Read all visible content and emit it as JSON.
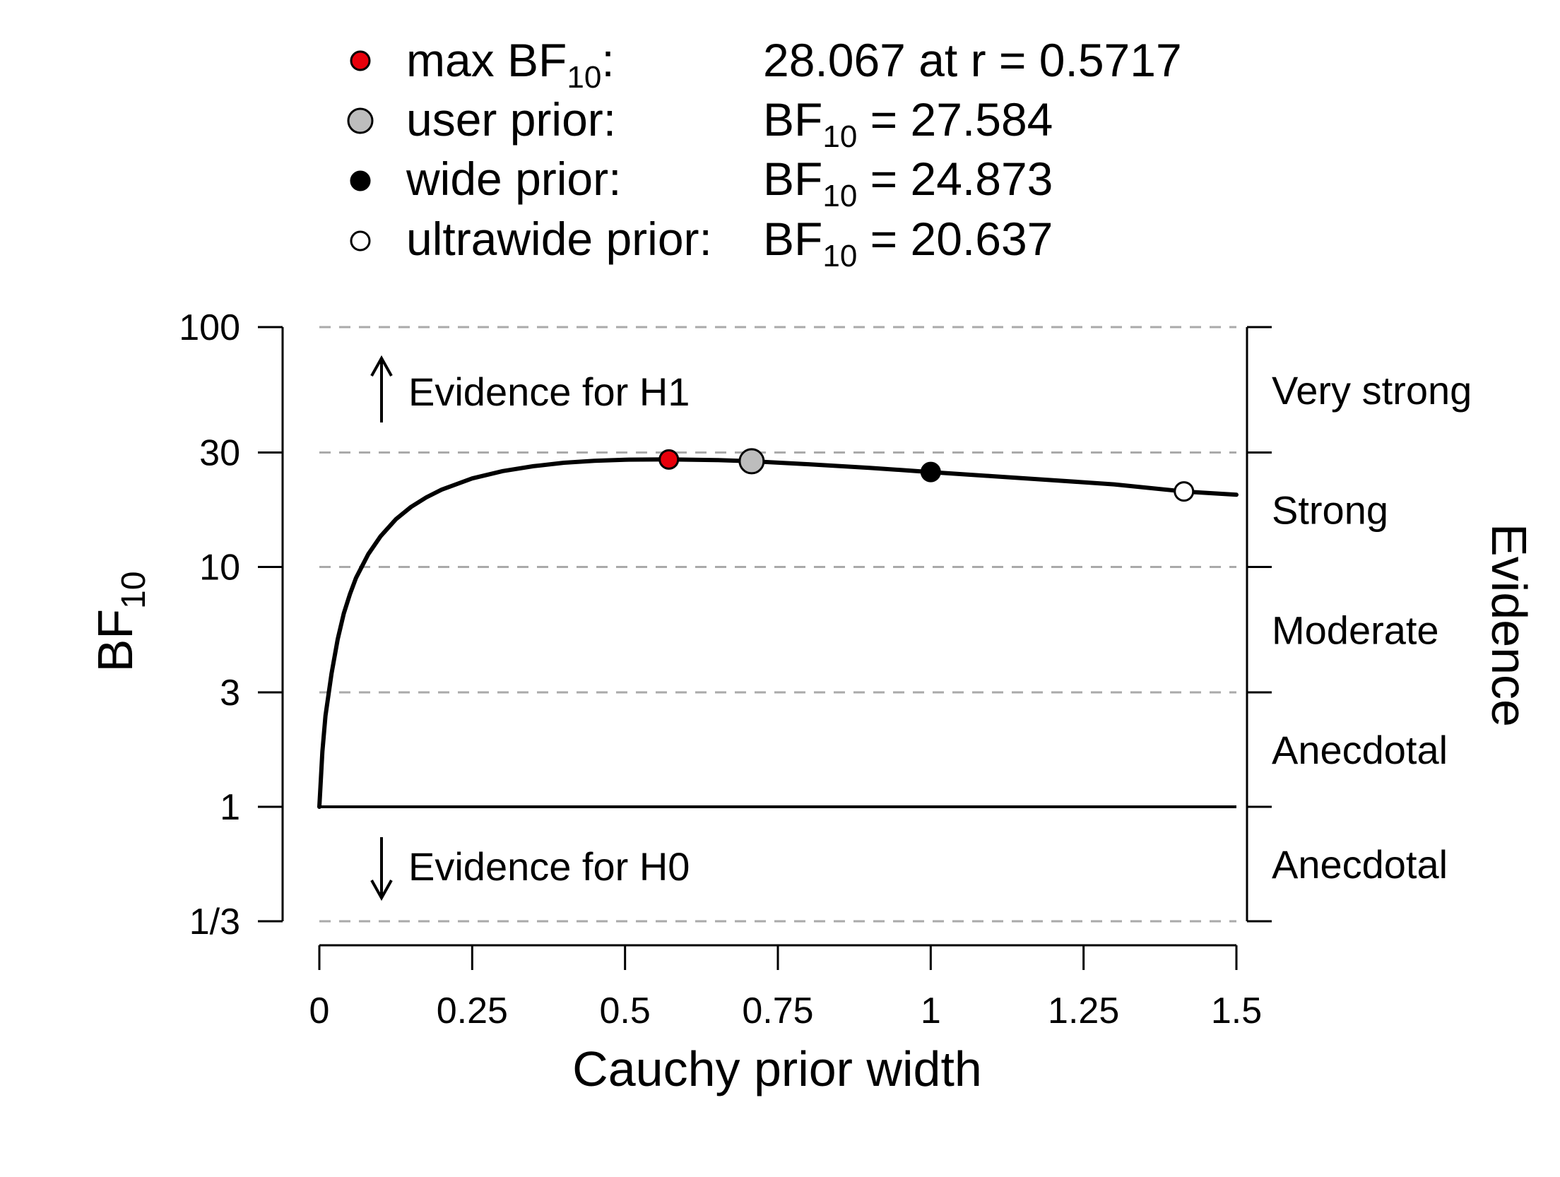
{
  "chart_data": {
    "type": "line",
    "xlabel": "Cauchy prior width",
    "ylabel": "BF",
    "ylabel_sub": "10",
    "right_label": "Evidence",
    "y_scale": "log",
    "xlim": [
      0,
      1.5
    ],
    "ylim": [
      0.3333,
      100
    ],
    "x_ticks": [
      0,
      0.25,
      0.5,
      0.75,
      1,
      1.25,
      1.5
    ],
    "x_tick_labels": [
      "0",
      "0.25",
      "0.5",
      "0.75",
      "1",
      "1.25",
      "1.5"
    ],
    "y_ticks": [
      0.3333,
      1,
      3,
      10,
      30,
      100
    ],
    "y_tick_labels": [
      "1/3",
      "1",
      "3",
      "10",
      "30",
      "100"
    ],
    "reference_line": 1,
    "gridlines": [
      0.3333,
      3,
      10,
      30,
      100
    ],
    "evidence_bands": [
      {
        "label": "Very strong",
        "from": 30,
        "to": 100
      },
      {
        "label": "Strong",
        "from": 10,
        "to": 30
      },
      {
        "label": "Moderate",
        "from": 3,
        "to": 10
      },
      {
        "label": "Anecdotal",
        "from": 1,
        "to": 3
      },
      {
        "label": "Anecdotal",
        "from": 0.3333,
        "to": 1
      }
    ],
    "annotations": {
      "h1": "Evidence for H1",
      "h0": "Evidence for H0"
    },
    "series": [
      {
        "x": [
          0.0,
          0.005,
          0.01,
          0.02,
          0.03,
          0.04,
          0.05,
          0.06,
          0.08,
          0.1,
          0.125,
          0.15,
          0.175,
          0.2,
          0.25,
          0.3,
          0.35,
          0.4,
          0.45,
          0.5,
          0.5717,
          0.65,
          0.7071,
          0.8,
          0.9,
          1.0,
          1.1,
          1.2,
          1.3,
          1.4142,
          1.5
        ],
        "y": [
          1.0,
          1.7,
          2.4,
          3.6,
          5.0,
          6.4,
          7.7,
          9.0,
          11.3,
          13.4,
          15.8,
          17.8,
          19.5,
          21.0,
          23.4,
          25.1,
          26.3,
          27.2,
          27.7,
          28.0,
          28.067,
          27.9,
          27.584,
          26.8,
          25.9,
          24.873,
          23.9,
          23.0,
          22.1,
          20.637,
          20.0
        ]
      }
    ],
    "points": [
      {
        "name": "max BF",
        "x": 0.5717,
        "y": 28.067,
        "fill": "#e8000b",
        "size": "small"
      },
      {
        "name": "user prior",
        "x": 0.7071,
        "y": 27.584,
        "fill": "#bdbdbd",
        "size": "large"
      },
      {
        "name": "wide prior",
        "x": 1.0,
        "y": 24.873,
        "fill": "#000000",
        "size": "small"
      },
      {
        "name": "ultrawide prior",
        "x": 1.4142,
        "y": 20.637,
        "fill": "#ffffff",
        "size": "small"
      }
    ],
    "legend": {
      "placement": "top",
      "entries": [
        {
          "label": "max BF",
          "label_sub": "10",
          "label_suffix": ":",
          "value": "28.067 at r = 0.5717",
          "fill": "#e8000b",
          "size": "small"
        },
        {
          "label": "user prior:",
          "value_prefix": "BF",
          "value_sub": "10",
          "value": " = 27.584",
          "fill": "#bdbdbd",
          "size": "large"
        },
        {
          "label": "wide prior:",
          "value_prefix": "BF",
          "value_sub": "10",
          "value": " = 24.873",
          "fill": "#000000",
          "size": "small"
        },
        {
          "label": "ultrawide prior:",
          "value_prefix": "BF",
          "value_sub": "10",
          "value": " = 20.637",
          "fill": "#ffffff",
          "size": "small"
        }
      ]
    },
    "colors": {
      "line": "#000000",
      "grid": "#aaaaaa",
      "max_point": "#e8000b",
      "user_point": "#bdbdbd"
    }
  }
}
